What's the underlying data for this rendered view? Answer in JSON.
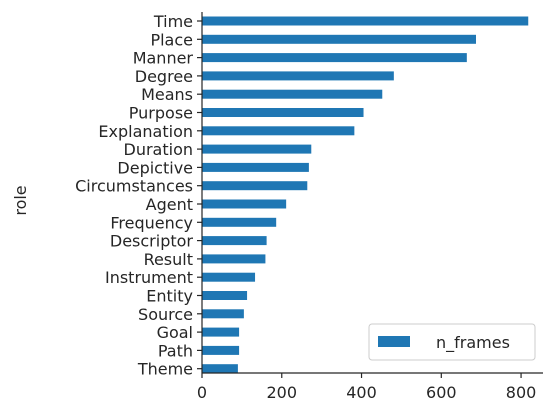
{
  "chart_data": {
    "type": "bar",
    "orientation": "horizontal",
    "categories": [
      "Time",
      "Place",
      "Manner",
      "Degree",
      "Means",
      "Purpose",
      "Explanation",
      "Duration",
      "Depictive",
      "Circumstances",
      "Agent",
      "Frequency",
      "Descriptor",
      "Result",
      "Instrument",
      "Entity",
      "Source",
      "Goal",
      "Path",
      "Theme"
    ],
    "series": [
      {
        "name": "n_frames",
        "color": "#1f77b4",
        "values": [
          818,
          687,
          664,
          481,
          452,
          405,
          382,
          274,
          268,
          264,
          211,
          186,
          162,
          159,
          133,
          113,
          105,
          93,
          93,
          90
        ]
      }
    ],
    "xlabel": "",
    "ylabel": "role",
    "xlim": [
      0,
      855
    ],
    "xticks": [
      "0",
      "200",
      "400",
      "600",
      "800"
    ],
    "grid": false,
    "legend": {
      "placement": "lower right",
      "label": "n_frames"
    }
  }
}
